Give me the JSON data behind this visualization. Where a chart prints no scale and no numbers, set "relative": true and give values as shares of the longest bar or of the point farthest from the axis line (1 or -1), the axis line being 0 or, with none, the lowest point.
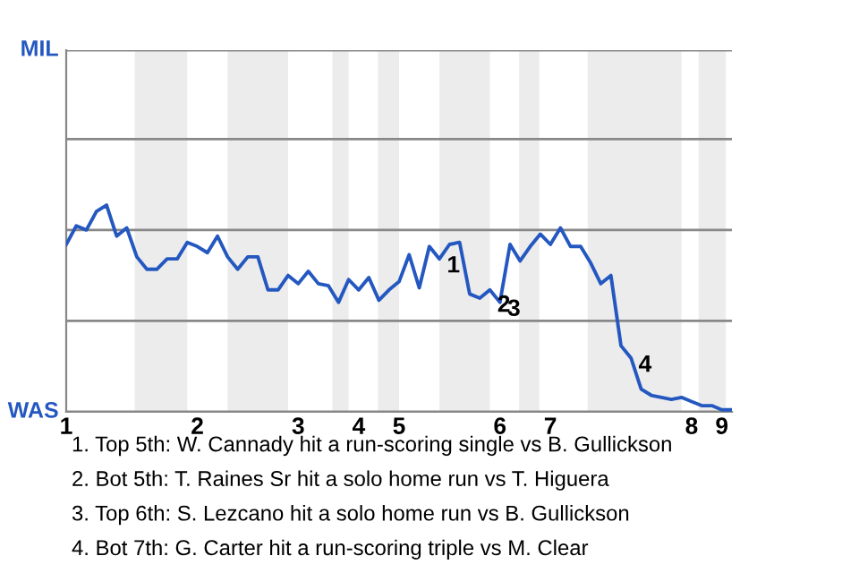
{
  "chart_data": {
    "type": "line",
    "relative": true,
    "categories": [
      "1",
      null,
      null,
      null,
      null,
      null,
      null,
      null,
      null,
      null,
      null,
      null,
      null,
      "2",
      null,
      null,
      null,
      null,
      null,
      null,
      null,
      null,
      null,
      "3",
      null,
      null,
      null,
      null,
      null,
      "4",
      null,
      null,
      null,
      "5",
      null,
      null,
      null,
      null,
      null,
      null,
      null,
      null,
      null,
      "6",
      null,
      null,
      null,
      null,
      "7",
      null,
      null,
      null,
      null,
      null,
      null,
      null,
      null,
      null,
      null,
      null,
      null,
      null,
      "8",
      null,
      null,
      "9",
      null
    ],
    "series": [
      {
        "color": "#2458c0",
        "values": [
          0.81,
          0.9,
          0.88,
          0.97,
          1,
          0.85,
          0.89,
          0.75,
          0.69,
          0.69,
          0.74,
          0.74,
          0.82,
          0.8,
          0.77,
          0.85,
          0.75,
          0.69,
          0.75,
          0.75,
          0.59,
          0.59,
          0.66,
          0.62,
          0.68,
          0.62,
          0.61,
          0.53,
          0.64,
          0.59,
          0.65,
          0.54,
          0.59,
          0.63,
          0.76,
          0.6,
          0.8,
          0.74,
          0.81,
          0.82,
          0.57,
          0.55,
          0.59,
          0.53,
          0.81,
          0.73,
          0.8,
          0.86,
          0.81,
          0.89,
          0.8,
          0.8,
          0.72,
          0.62,
          0.66,
          0.32,
          0.26,
          0.11,
          0.08,
          0.07,
          0.06,
          0.07,
          0.05,
          0.03,
          0.03,
          0.01,
          0.01
        ]
      }
    ],
    "ref_lines": [
      {
        "axis": "y",
        "value": 0,
        "label": "WAS",
        "color": "#888888"
      },
      {
        "axis": "y",
        "value": 0.44,
        "color": "#888888"
      },
      {
        "axis": "y",
        "value": 0.88,
        "color": "#888888"
      },
      {
        "axis": "y",
        "value": 1.32,
        "color": "#888888"
      },
      {
        "axis": "y",
        "value": 1.75,
        "label": "MIL",
        "color": "#888888"
      }
    ],
    "annotations": [
      "1",
      "2",
      "3",
      "4",
      "1. Top 5th: W. Cannady hit a run-scoring single vs B. Gullickson",
      "2. Bot 5th: T. Raines Sr hit a solo home run vs T. Higuera",
      "3. Top 6th: S. Lezcano hit a solo home run vs B. Gullickson",
      "4. Bot 7th: G. Carter hit a run-scoring triple vs M. Clear"
    ]
  }
}
